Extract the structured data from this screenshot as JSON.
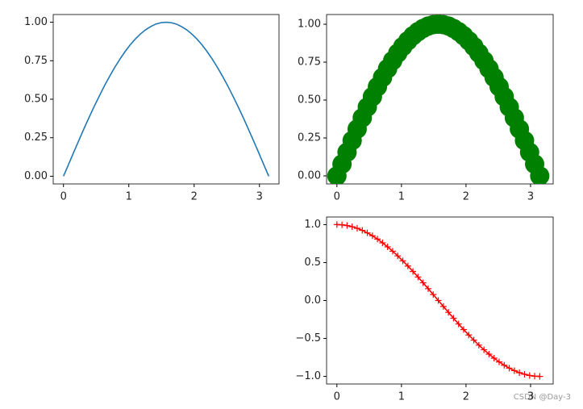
{
  "chart_data": [
    {
      "type": "line",
      "color": "#1f77b4",
      "marker": "none",
      "linestyle": "-",
      "x": [
        0,
        0.079,
        0.157,
        0.236,
        0.314,
        0.393,
        0.471,
        0.55,
        0.628,
        0.707,
        0.785,
        0.864,
        0.942,
        1.021,
        1.1,
        1.178,
        1.257,
        1.335,
        1.414,
        1.492,
        1.571,
        1.649,
        1.728,
        1.806,
        1.885,
        1.963,
        2.042,
        2.121,
        2.199,
        2.278,
        2.356,
        2.435,
        2.513,
        2.592,
        2.67,
        2.749,
        2.827,
        2.906,
        2.985,
        3.063,
        3.142
      ],
      "values": [
        0,
        0.078,
        0.156,
        0.233,
        0.309,
        0.383,
        0.454,
        0.522,
        0.588,
        0.649,
        0.707,
        0.76,
        0.809,
        0.853,
        0.891,
        0.924,
        0.951,
        0.972,
        0.988,
        0.997,
        1,
        0.997,
        0.988,
        0.972,
        0.951,
        0.924,
        0.891,
        0.853,
        0.809,
        0.76,
        0.707,
        0.649,
        0.588,
        0.522,
        0.454,
        0.383,
        0.309,
        0.233,
        0.156,
        0.078,
        0
      ],
      "xlim": [
        -0.157,
        3.299
      ],
      "ylim": [
        -0.05,
        1.05
      ],
      "xticks": [
        0,
        1,
        2,
        3
      ],
      "yticks": [
        {
          "value": 0,
          "label": "0.00"
        },
        {
          "value": 0.25,
          "label": "0.25"
        },
        {
          "value": 0.5,
          "label": "0.50"
        },
        {
          "value": 0.75,
          "label": "0.75"
        },
        {
          "value": 1,
          "label": "1.00"
        }
      ]
    },
    {
      "type": "line",
      "color": "green",
      "marker": "o",
      "linestyle": "none",
      "x": [
        0,
        0.079,
        0.157,
        0.236,
        0.314,
        0.393,
        0.471,
        0.55,
        0.628,
        0.707,
        0.785,
        0.864,
        0.942,
        1.021,
        1.1,
        1.178,
        1.257,
        1.335,
        1.414,
        1.492,
        1.571,
        1.649,
        1.728,
        1.806,
        1.885,
        1.963,
        2.042,
        2.121,
        2.199,
        2.278,
        2.356,
        2.435,
        2.513,
        2.592,
        2.67,
        2.749,
        2.827,
        2.906,
        2.985,
        3.063,
        3.142
      ],
      "values": [
        0,
        0.078,
        0.156,
        0.233,
        0.309,
        0.383,
        0.454,
        0.522,
        0.588,
        0.649,
        0.707,
        0.76,
        0.809,
        0.853,
        0.891,
        0.924,
        0.951,
        0.972,
        0.988,
        0.997,
        1,
        0.997,
        0.988,
        0.972,
        0.951,
        0.924,
        0.891,
        0.853,
        0.809,
        0.76,
        0.707,
        0.649,
        0.588,
        0.522,
        0.454,
        0.383,
        0.309,
        0.233,
        0.156,
        0.078,
        0
      ],
      "xlim": [
        -0.16,
        3.35
      ],
      "ylim": [
        -0.053,
        1.064
      ],
      "xticks": [
        0,
        1,
        2,
        3
      ],
      "yticks": [
        {
          "value": 0,
          "label": "0.00"
        },
        {
          "value": 0.25,
          "label": "0.25"
        },
        {
          "value": 0.5,
          "label": "0.50"
        },
        {
          "value": 0.75,
          "label": "0.75"
        },
        {
          "value": 1,
          "label": "1.00"
        }
      ]
    },
    {
      "type": "line",
      "color": "red",
      "marker": "+",
      "linestyle": "-",
      "x": [
        0,
        0.079,
        0.157,
        0.236,
        0.314,
        0.393,
        0.471,
        0.55,
        0.628,
        0.707,
        0.785,
        0.864,
        0.942,
        1.021,
        1.1,
        1.178,
        1.257,
        1.335,
        1.414,
        1.492,
        1.571,
        1.649,
        1.728,
        1.806,
        1.885,
        1.963,
        2.042,
        2.121,
        2.199,
        2.278,
        2.356,
        2.435,
        2.513,
        2.592,
        2.67,
        2.749,
        2.827,
        2.906,
        2.985,
        3.063,
        3.142
      ],
      "values": [
        1,
        0.997,
        0.988,
        0.972,
        0.951,
        0.924,
        0.891,
        0.853,
        0.809,
        0.76,
        0.707,
        0.649,
        0.588,
        0.522,
        0.454,
        0.383,
        0.309,
        0.233,
        0.156,
        0.078,
        0,
        -0.078,
        -0.156,
        -0.233,
        -0.309,
        -0.383,
        -0.454,
        -0.522,
        -0.588,
        -0.649,
        -0.707,
        -0.76,
        -0.809,
        -0.853,
        -0.891,
        -0.924,
        -0.951,
        -0.972,
        -0.988,
        -0.997,
        -1
      ],
      "xlim": [
        -0.16,
        3.35
      ],
      "ylim": [
        -1.1,
        1.1
      ],
      "xticks": [
        0,
        1,
        2,
        3
      ],
      "yticks": [
        {
          "value": -1,
          "label": "−1.0"
        },
        {
          "value": -0.5,
          "label": "−0.5"
        },
        {
          "value": 0,
          "label": "0.0"
        },
        {
          "value": 0.5,
          "label": "0.5"
        },
        {
          "value": 1,
          "label": "1.0"
        }
      ]
    }
  ],
  "watermark": "CSDN @Day-3"
}
